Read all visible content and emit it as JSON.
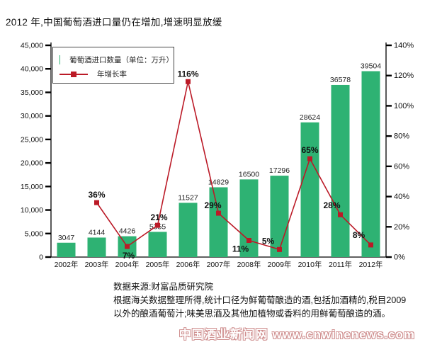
{
  "page": {
    "title": "2012 年,中国葡萄酒进口量仍在增加,增速明显放缓"
  },
  "chart_data": {
    "type": "bar+line",
    "title": "2012 年,中国葡萄酒进口量仍在增加,增速明显放缓",
    "categories": [
      "2002年",
      "2003年",
      "2004年",
      "2005年",
      "2006年",
      "2007年",
      "2008年",
      "2009年",
      "2010年",
      "2011年",
      "2012年"
    ],
    "series": [
      {
        "name": "葡萄酒进口数量（单位：万升）",
        "type": "bar",
        "axis": "left",
        "values": [
          3047,
          4144,
          4426,
          5355,
          11527,
          14829,
          16500,
          17296,
          28624,
          36578,
          39504
        ],
        "labels": [
          "3047",
          "4144",
          "4426",
          "5355",
          "11527",
          "14829",
          "16500",
          "17296",
          "28624",
          "36578",
          "39504"
        ]
      },
      {
        "name": "年增长率",
        "type": "line",
        "axis": "right",
        "values": [
          null,
          36,
          7,
          21,
          116,
          29,
          11,
          5,
          65,
          28,
          8
        ],
        "labels": [
          "",
          "36%",
          "7%",
          "21%",
          "116%",
          "29%",
          "11%",
          "5%",
          "65%",
          "28%",
          "8%"
        ],
        "label_offsets": [
          [
            0,
            0
          ],
          [
            0,
            -7
          ],
          [
            2,
            17
          ],
          [
            2,
            -7
          ],
          [
            0,
            -7
          ],
          [
            -8,
            -7
          ],
          [
            -12,
            16
          ],
          [
            -16,
            -8
          ],
          [
            0,
            -8
          ],
          [
            -12,
            -9
          ],
          [
            -17,
            -10
          ]
        ]
      }
    ],
    "y_left": {
      "min": 0,
      "max": 45000,
      "ticks": [
        "45,000",
        "40,000",
        "35,000",
        "30,000",
        "25,000",
        "20,000",
        "15,000",
        "10,000",
        "5,000",
        "0"
      ]
    },
    "y_right": {
      "min": 0,
      "max": 140,
      "ticks": [
        "140%",
        "120%",
        "100%",
        "80%",
        "60%",
        "40%",
        "20%",
        "0%"
      ]
    },
    "legend_position": "top-left",
    "grid": false,
    "colors": {
      "bar": "#2eb273",
      "line": "#bb1a27",
      "text": "#111111"
    }
  },
  "legend": {
    "items": [
      {
        "label": "葡萄酒进口数量（单位：万升）",
        "swatch": "bar"
      },
      {
        "label": "年增长率",
        "swatch": "line"
      }
    ]
  },
  "footer": {
    "source": "数据来源:财富品质研究院",
    "note_line1": "根据海关数据整理所得,统计口径为鲜葡萄酿造的酒,包括加酒精的,税目2009",
    "note_line2": "以外的酿酒葡萄汁;味美思酒及其他加植物或香料的用鲜葡萄酿造的酒。",
    "watermark": "中国酒业新闻网 www.cnwinenews.com"
  }
}
